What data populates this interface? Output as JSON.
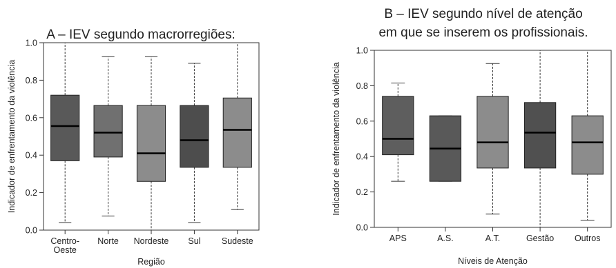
{
  "chart_data": [
    {
      "type": "boxplot",
      "title": "A – IEV segundo macrorregiões:",
      "xlabel": "Região",
      "ylabel": "Indicador de enfrentamento da violência",
      "ylim": [
        0.0,
        1.0
      ],
      "yticks": [
        "0.0",
        "0.2",
        "0.4",
        "0.6",
        "0.8",
        "1.0"
      ],
      "categories": [
        [
          "Centro-",
          "Oeste"
        ],
        [
          "Norte"
        ],
        [
          "Nordeste"
        ],
        [
          "Sul"
        ],
        [
          "Sudeste"
        ]
      ],
      "boxes": [
        {
          "min": 0.04,
          "q1": 0.37,
          "median": 0.555,
          "q3": 0.72,
          "max": 1.0,
          "color": "#595959"
        },
        {
          "min": 0.075,
          "q1": 0.39,
          "median": 0.52,
          "q3": 0.665,
          "max": 0.925,
          "color": "#707070"
        },
        {
          "min": 0.0,
          "q1": 0.26,
          "median": 0.41,
          "q3": 0.665,
          "max": 0.925,
          "color": "#8c8c8c"
        },
        {
          "min": 0.04,
          "q1": 0.335,
          "median": 0.48,
          "q3": 0.665,
          "max": 0.89,
          "color": "#4d4d4d"
        },
        {
          "min": 0.11,
          "q1": 0.335,
          "median": 0.535,
          "q3": 0.705,
          "max": 1.0,
          "color": "#8c8c8c"
        }
      ]
    },
    {
      "type": "boxplot",
      "title": [
        "B – IEV segundo nível de atenção",
        "em que se inserem os profissionais."
      ],
      "xlabel": "Níveis de Atenção",
      "ylabel": "Indicador de enfrentamento da violência",
      "ylim": [
        0.0,
        1.0
      ],
      "yticks": [
        "0.0",
        "0.2",
        "0.4",
        "0.6",
        "0.8",
        "1.0"
      ],
      "categories": [
        [
          "APS"
        ],
        [
          "A.S."
        ],
        [
          "A.T."
        ],
        [
          "Gestão"
        ],
        [
          "Outros"
        ]
      ],
      "boxes": [
        {
          "min": 0.26,
          "q1": 0.41,
          "median": 0.5,
          "q3": 0.74,
          "max": 0.815,
          "color": "#5e5e5e"
        },
        {
          "min": 0.26,
          "q1": 0.26,
          "median": 0.445,
          "q3": 0.63,
          "max": 0.63,
          "color": "#595959"
        },
        {
          "min": 0.075,
          "q1": 0.335,
          "median": 0.48,
          "q3": 0.74,
          "max": 0.925,
          "color": "#8c8c8c"
        },
        {
          "min": 0.0,
          "q1": 0.335,
          "median": 0.535,
          "q3": 0.705,
          "max": 1.0,
          "color": "#505050"
        },
        {
          "min": 0.04,
          "q1": 0.3,
          "median": 0.48,
          "q3": 0.63,
          "max": 1.0,
          "color": "#8c8c8c"
        }
      ]
    }
  ]
}
